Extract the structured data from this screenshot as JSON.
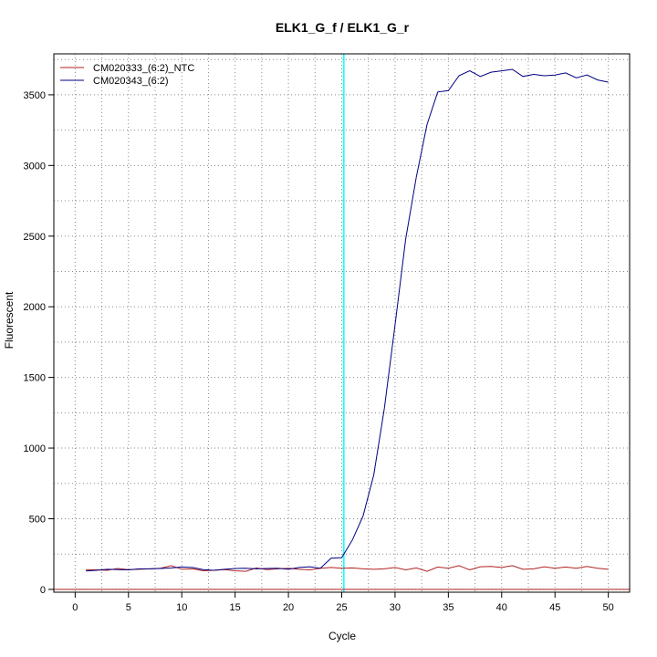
{
  "chart_data": {
    "type": "line",
    "title": "ELK1_G_f / ELK1_G_r",
    "xlabel": "Cycle",
    "ylabel": "Fluorescent",
    "xlim": [
      -2,
      52
    ],
    "ylim": [
      -20,
      3790
    ],
    "x_ticks": [
      0,
      5,
      10,
      15,
      20,
      25,
      30,
      35,
      40,
      45,
      50
    ],
    "y_ticks": [
      0,
      500,
      1000,
      1500,
      2000,
      2500,
      3000,
      3500
    ],
    "grid": true,
    "legend_position": "top-left",
    "threshold_cycle": 25.2,
    "baseline_value": 0,
    "colors": {
      "ntc": "#b22222",
      "sample": "#000080",
      "threshold": "#00ffff",
      "baseline": "#b22222",
      "grid": "#888888"
    },
    "x": [
      1,
      2,
      3,
      4,
      5,
      6,
      7,
      8,
      9,
      10,
      11,
      12,
      13,
      14,
      15,
      16,
      17,
      18,
      19,
      20,
      21,
      22,
      23,
      24,
      25,
      26,
      27,
      28,
      29,
      30,
      31,
      32,
      33,
      34,
      35,
      36,
      37,
      38,
      39,
      40,
      41,
      42,
      43,
      44,
      45,
      46,
      47,
      48,
      49,
      50
    ],
    "series": [
      {
        "name": "CM020333_(6:2)_NTC",
        "values": [
          140,
          138,
          135,
          148,
          140,
          142,
          145,
          150,
          168,
          143,
          145,
          132,
          135,
          140,
          132,
          128,
          152,
          140,
          145,
          150,
          142,
          138,
          150,
          155,
          150,
          152,
          145,
          142,
          145,
          155,
          138,
          152,
          128,
          158,
          150,
          168,
          138,
          160,
          162,
          155,
          168,
          142,
          145,
          160,
          150,
          158,
          150,
          162,
          150,
          142
        ]
      },
      {
        "name": "CM020343_(6:2)",
        "values": [
          130,
          135,
          142,
          140,
          138,
          145,
          145,
          148,
          152,
          158,
          155,
          140,
          135,
          142,
          148,
          150,
          145,
          148,
          150,
          142,
          155,
          160,
          150,
          220,
          225,
          350,
          520,
          810,
          1280,
          1870,
          2480,
          2920,
          3290,
          3520,
          3530,
          3635,
          3670,
          3630,
          3660,
          3670,
          3680,
          3630,
          3645,
          3635,
          3640,
          3655,
          3620,
          3640,
          3605,
          3590
        ]
      }
    ]
  }
}
